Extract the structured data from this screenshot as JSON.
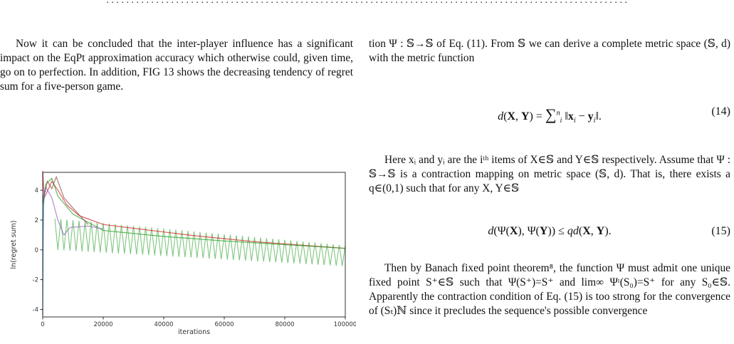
{
  "top_clip": "(clipped line from previous page)",
  "left": {
    "paragraph": "Now it can be concluded that the inter-player influence has a significant impact on the EqPt approximation accuracy which otherwise could, given time, go on to perfection. In addition, FIG 13 shows the decreasing tendency of regret sum for a five-person game."
  },
  "right": {
    "para1": "tion Ψ : 𝕊→𝕊 of Eq. (11). From 𝕊 we can derive a complete metric space (𝕊, d) with the metric function",
    "eq14_number": "(14)",
    "para2": "Here xᵢ and yᵢ are the iᵗʰ items of X∈𝕊 and Y∈𝕊 respectively. Assume that Ψ : 𝕊→𝕊 is a contraction mapping on metric space (𝕊, d). That is, there exists a q∈(0,1) such that for any X, Y∈𝕊",
    "eq15_number": "(15)",
    "para3": "Then by Banach fixed point theorem⁸, the function Ψ must admit one unique fixed point S⁺∈𝕊 such that Ψ(S⁺)=S⁺ and lim∞ Ψᵗ(S₀)=S⁺ for any S₀∈𝕊. Apparently the contraction condition of Eq. (15) is too strong for the convergence of (Sₜ)ℕ since it precludes the sequence's possible convergence"
  },
  "chart_data": {
    "type": "line",
    "xlabel": "iterations",
    "ylabel": "ln(regret sum)",
    "xlim": [
      0,
      100000
    ],
    "ylim": [
      -4.5,
      5.2
    ],
    "xticks": [
      "0",
      "20000",
      "40000",
      "60000",
      "80000",
      "100000"
    ],
    "yticks": [
      "-4",
      "-2",
      "0",
      "2",
      "4"
    ],
    "grid": false,
    "series": [
      {
        "color": "#d62728",
        "x": [
          0,
          500,
          1000,
          3000,
          5000,
          8000,
          12000,
          20000,
          30000,
          40000,
          50000,
          60000,
          70000,
          80000,
          90000,
          100000
        ],
        "y": [
          5.3,
          3.5,
          3.7,
          4.6,
          4.0,
          3.0,
          2.3,
          1.7,
          1.45,
          1.2,
          0.95,
          0.75,
          0.55,
          0.4,
          0.25,
          0.1
        ]
      },
      {
        "color": "#2ca02c",
        "x": [
          0,
          1000,
          3000,
          5000,
          10000,
          20000,
          40000,
          60000,
          80000,
          100000
        ],
        "y": [
          3.0,
          4.4,
          4.8,
          3.6,
          2.4,
          1.3,
          0.9,
          0.6,
          0.35,
          0.1
        ]
      },
      {
        "color": "#9467bd",
        "x": [
          0,
          1000,
          3000,
          5000,
          7000,
          9000,
          15000,
          20000
        ],
        "y": [
          3.5,
          4.2,
          3.5,
          2.0,
          1.0,
          1.5,
          1.6,
          1.4
        ]
      },
      {
        "color": "#8c564b",
        "x": [
          0,
          1500,
          3000,
          4500,
          7000,
          10000,
          15000
        ],
        "y": [
          3.2,
          4.6,
          4.1,
          4.9,
          3.5,
          2.8,
          1.7
        ]
      },
      {
        "color": "#1f77b4",
        "x": [
          0,
          150,
          300,
          600,
          1000
        ],
        "y": [
          -4.4,
          0.6,
          3.0,
          3.8,
          4.0
        ]
      }
    ],
    "oscillating_series": {
      "color": "#2ca02c",
      "x_start": 4000,
      "x_end": 100000,
      "period": 2000,
      "upper_start": 2.1,
      "upper_end": 0.3,
      "lower_start": 0.0,
      "lower_end": -1.1
    }
  }
}
